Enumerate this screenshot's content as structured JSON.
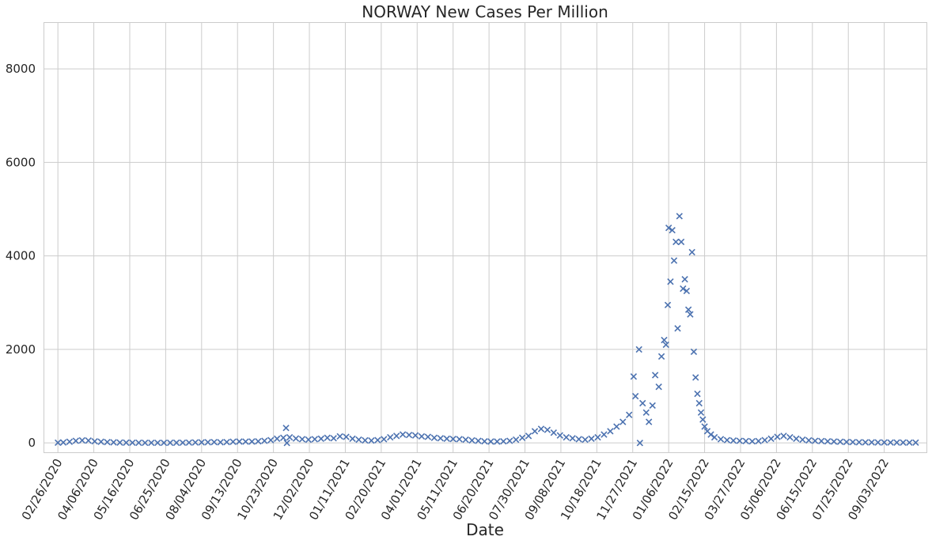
{
  "chart_data": {
    "type": "scatter",
    "title": "NORWAY   New Cases Per Million",
    "xlabel": "Date",
    "ylabel": "",
    "x_range": [
      "2020-02-10",
      "2022-10-20"
    ],
    "ylim": [
      -200,
      9000
    ],
    "y_ticks": [
      0,
      2000,
      4000,
      6000,
      8000
    ],
    "x_ticks": [
      "02/26/2020",
      "04/06/2020",
      "05/16/2020",
      "06/25/2020",
      "08/04/2020",
      "09/13/2020",
      "10/23/2020",
      "12/02/2020",
      "01/11/2021",
      "02/20/2021",
      "04/01/2021",
      "05/11/2021",
      "06/20/2021",
      "07/30/2021",
      "09/08/2021",
      "10/18/2021",
      "11/27/2021",
      "01/06/2022",
      "02/15/2022",
      "03/27/2022",
      "05/06/2022",
      "06/15/2022",
      "07/25/2022",
      "09/03/2022"
    ],
    "marker": "x",
    "grid": true,
    "colors": {
      "series": "#4c72b0",
      "grid": "#cccccc",
      "text": "#262626"
    },
    "series": [
      {
        "points": [
          [
            "2020-02-26",
            5
          ],
          [
            "2020-03-03",
            10
          ],
          [
            "2020-03-10",
            25
          ],
          [
            "2020-03-17",
            45
          ],
          [
            "2020-03-24",
            55
          ],
          [
            "2020-03-31",
            50
          ],
          [
            "2020-04-07",
            35
          ],
          [
            "2020-04-14",
            25
          ],
          [
            "2020-04-21",
            18
          ],
          [
            "2020-04-28",
            12
          ],
          [
            "2020-05-05",
            8
          ],
          [
            "2020-05-12",
            6
          ],
          [
            "2020-05-19",
            5
          ],
          [
            "2020-05-26",
            4
          ],
          [
            "2020-06-02",
            3
          ],
          [
            "2020-06-09",
            3
          ],
          [
            "2020-06-16",
            3
          ],
          [
            "2020-06-23",
            3
          ],
          [
            "2020-06-30",
            4
          ],
          [
            "2020-07-07",
            4
          ],
          [
            "2020-07-14",
            5
          ],
          [
            "2020-07-21",
            7
          ],
          [
            "2020-07-28",
            10
          ],
          [
            "2020-08-04",
            12
          ],
          [
            "2020-08-11",
            15
          ],
          [
            "2020-08-18",
            18
          ],
          [
            "2020-08-25",
            15
          ],
          [
            "2020-09-01",
            18
          ],
          [
            "2020-09-08",
            25
          ],
          [
            "2020-09-15",
            30
          ],
          [
            "2020-09-22",
            28
          ],
          [
            "2020-09-29",
            30
          ],
          [
            "2020-10-06",
            35
          ],
          [
            "2020-10-13",
            45
          ],
          [
            "2020-10-20",
            60
          ],
          [
            "2020-10-27",
            90
          ],
          [
            "2020-11-03",
            110
          ],
          [
            "2020-11-06",
            320
          ],
          [
            "2020-11-07",
            0
          ],
          [
            "2020-11-10",
            120
          ],
          [
            "2020-11-17",
            95
          ],
          [
            "2020-11-24",
            80
          ],
          [
            "2020-12-01",
            70
          ],
          [
            "2020-12-08",
            80
          ],
          [
            "2020-12-15",
            90
          ],
          [
            "2020-12-22",
            110
          ],
          [
            "2020-12-29",
            100
          ],
          [
            "2021-01-05",
            140
          ],
          [
            "2021-01-12",
            130
          ],
          [
            "2021-01-19",
            90
          ],
          [
            "2021-01-26",
            70
          ],
          [
            "2021-02-02",
            55
          ],
          [
            "2021-02-09",
            50
          ],
          [
            "2021-02-16",
            60
          ],
          [
            "2021-02-23",
            80
          ],
          [
            "2021-03-02",
            120
          ],
          [
            "2021-03-09",
            150
          ],
          [
            "2021-03-16",
            180
          ],
          [
            "2021-03-23",
            170
          ],
          [
            "2021-03-30",
            160
          ],
          [
            "2021-04-06",
            140
          ],
          [
            "2021-04-13",
            130
          ],
          [
            "2021-04-20",
            110
          ],
          [
            "2021-04-27",
            100
          ],
          [
            "2021-05-04",
            90
          ],
          [
            "2021-05-11",
            85
          ],
          [
            "2021-05-18",
            80
          ],
          [
            "2021-05-25",
            70
          ],
          [
            "2021-06-01",
            55
          ],
          [
            "2021-06-08",
            45
          ],
          [
            "2021-06-15",
            35
          ],
          [
            "2021-06-22",
            30
          ],
          [
            "2021-06-29",
            30
          ],
          [
            "2021-07-06",
            35
          ],
          [
            "2021-07-13",
            45
          ],
          [
            "2021-07-20",
            70
          ],
          [
            "2021-07-27",
            110
          ],
          [
            "2021-08-03",
            150
          ],
          [
            "2021-08-10",
            250
          ],
          [
            "2021-08-17",
            300
          ],
          [
            "2021-08-24",
            280
          ],
          [
            "2021-08-31",
            220
          ],
          [
            "2021-09-07",
            160
          ],
          [
            "2021-09-14",
            120
          ],
          [
            "2021-09-21",
            100
          ],
          [
            "2021-09-28",
            80
          ],
          [
            "2021-10-05",
            70
          ],
          [
            "2021-10-12",
            90
          ],
          [
            "2021-10-19",
            120
          ],
          [
            "2021-10-26",
            180
          ],
          [
            "2021-11-02",
            250
          ],
          [
            "2021-11-09",
            350
          ],
          [
            "2021-11-16",
            450
          ],
          [
            "2021-11-23",
            600
          ],
          [
            "2021-11-28",
            1420
          ],
          [
            "2021-11-30",
            1000
          ],
          [
            "2021-12-04",
            2000
          ],
          [
            "2021-12-05",
            0
          ],
          [
            "2021-12-08",
            850
          ],
          [
            "2021-12-12",
            650
          ],
          [
            "2021-12-15",
            450
          ],
          [
            "2021-12-19",
            800
          ],
          [
            "2021-12-22",
            1450
          ],
          [
            "2021-12-26",
            1200
          ],
          [
            "2021-12-29",
            1850
          ],
          [
            "2022-01-01",
            2200
          ],
          [
            "2022-01-03",
            2100
          ],
          [
            "2022-01-05",
            2950
          ],
          [
            "2022-01-06",
            4600
          ],
          [
            "2022-01-08",
            3450
          ],
          [
            "2022-01-10",
            4550
          ],
          [
            "2022-01-12",
            3900
          ],
          [
            "2022-01-14",
            4300
          ],
          [
            "2022-01-16",
            2450
          ],
          [
            "2022-01-18",
            4850
          ],
          [
            "2022-01-20",
            4300
          ],
          [
            "2022-01-22",
            3300
          ],
          [
            "2022-01-24",
            3500
          ],
          [
            "2022-01-26",
            3250
          ],
          [
            "2022-01-28",
            2850
          ],
          [
            "2022-01-30",
            2750
          ],
          [
            "2022-02-01",
            4080
          ],
          [
            "2022-02-03",
            1950
          ],
          [
            "2022-02-05",
            1400
          ],
          [
            "2022-02-07",
            1050
          ],
          [
            "2022-02-09",
            850
          ],
          [
            "2022-02-11",
            650
          ],
          [
            "2022-02-13",
            500
          ],
          [
            "2022-02-15",
            350
          ],
          [
            "2022-02-18",
            250
          ],
          [
            "2022-02-22",
            180
          ],
          [
            "2022-02-26",
            120
          ],
          [
            "2022-03-05",
            80
          ],
          [
            "2022-03-12",
            60
          ],
          [
            "2022-03-19",
            50
          ],
          [
            "2022-03-26",
            45
          ],
          [
            "2022-04-02",
            40
          ],
          [
            "2022-04-09",
            35
          ],
          [
            "2022-04-16",
            40
          ],
          [
            "2022-04-23",
            60
          ],
          [
            "2022-04-30",
            90
          ],
          [
            "2022-05-07",
            130
          ],
          [
            "2022-05-14",
            150
          ],
          [
            "2022-05-21",
            120
          ],
          [
            "2022-05-28",
            90
          ],
          [
            "2022-06-04",
            70
          ],
          [
            "2022-06-11",
            55
          ],
          [
            "2022-06-18",
            45
          ],
          [
            "2022-06-25",
            40
          ],
          [
            "2022-07-02",
            35
          ],
          [
            "2022-07-09",
            30
          ],
          [
            "2022-07-16",
            25
          ],
          [
            "2022-07-23",
            20
          ],
          [
            "2022-07-30",
            18
          ],
          [
            "2022-08-06",
            15
          ],
          [
            "2022-08-13",
            13
          ],
          [
            "2022-08-20",
            12
          ],
          [
            "2022-08-27",
            10
          ],
          [
            "2022-09-03",
            10
          ],
          [
            "2022-09-10",
            9
          ],
          [
            "2022-09-17",
            8
          ],
          [
            "2022-09-24",
            8
          ],
          [
            "2022-10-01",
            7
          ],
          [
            "2022-10-08",
            7
          ]
        ]
      }
    ]
  }
}
